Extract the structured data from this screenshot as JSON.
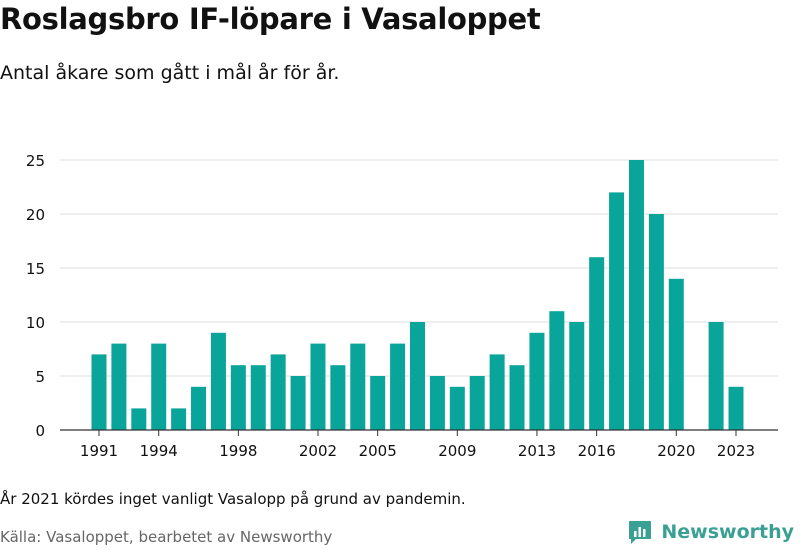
{
  "title": "Roslagsbro IF-löpare i Vasaloppet",
  "subtitle": "Antal åkare som gått i mål år för år.",
  "footnote": "År 2021 kördes inget vanligt Vasalopp på grund av pandemin.",
  "source": "Källa: Vasaloppet, bearbetet av Newsworthy",
  "logo_text": "Newsworthy",
  "logo_icon": "bar-chart-logo-icon",
  "colors": {
    "bar": "#0aa59a",
    "grid": "#dddddd",
    "axis": "#333333",
    "logo": "#3aa094"
  },
  "chart_data": {
    "type": "bar",
    "x": [
      1991,
      1992,
      1993,
      1994,
      1995,
      1996,
      1997,
      1998,
      1999,
      2000,
      2001,
      2002,
      2003,
      2004,
      2005,
      2006,
      2007,
      2008,
      2009,
      2010,
      2011,
      2012,
      2013,
      2014,
      2015,
      2016,
      2017,
      2018,
      2019,
      2020,
      2021,
      2022,
      2023
    ],
    "values": [
      7,
      8,
      2,
      8,
      2,
      4,
      9,
      6,
      6,
      7,
      5,
      8,
      6,
      8,
      5,
      8,
      10,
      5,
      4,
      5,
      7,
      6,
      9,
      11,
      10,
      16,
      22,
      25,
      20,
      14,
      null,
      10,
      4
    ],
    "x_tick_labels": [
      1991,
      1994,
      1998,
      2002,
      2005,
      2009,
      2013,
      2016,
      2020,
      2023
    ],
    "y_ticks": [
      0,
      5,
      10,
      15,
      20,
      25
    ],
    "ylim": [
      0,
      25
    ],
    "grid": "horizontal",
    "xlabel": "",
    "ylabel": "",
    "legend": "none"
  }
}
